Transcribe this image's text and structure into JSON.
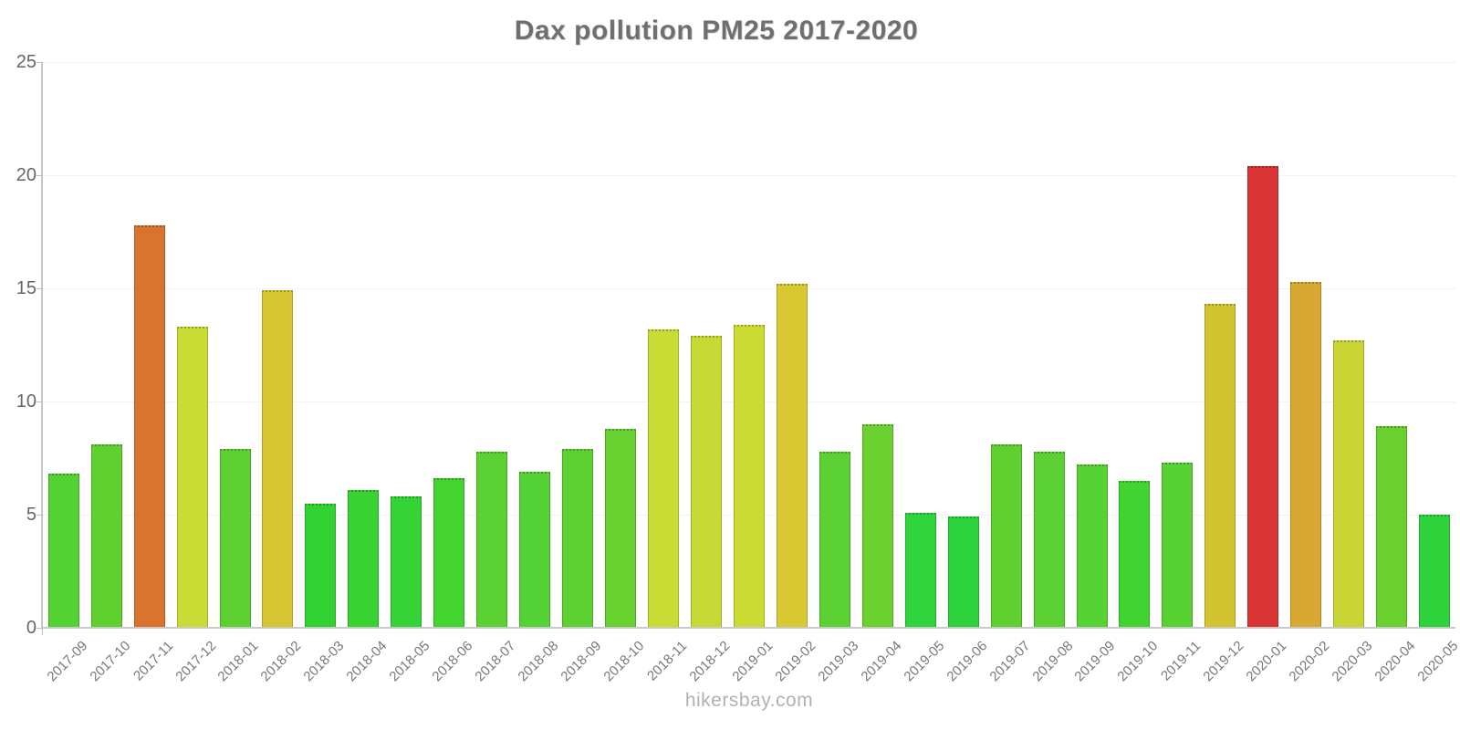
{
  "chart_data": {
    "type": "bar",
    "title": "Dax pollution PM25 2017-2020",
    "xlabel": "",
    "ylabel": "",
    "ylim": [
      0,
      25
    ],
    "yticks": [
      0,
      5,
      10,
      15,
      20,
      25
    ],
    "grid": true,
    "legend": "none",
    "categories": [
      "2017-09",
      "2017-10",
      "2017-11",
      "2017-12",
      "2018-01",
      "2018-02",
      "2018-03",
      "2018-04",
      "2018-05",
      "2018-06",
      "2018-07",
      "2018-08",
      "2018-09",
      "2018-10",
      "2018-11",
      "2018-12",
      "2019-01",
      "2019-02",
      "2019-03",
      "2019-04",
      "2019-05",
      "2019-06",
      "2019-07",
      "2019-08",
      "2019-09",
      "2019-10",
      "2019-11",
      "2019-12",
      "2020-01",
      "2020-02",
      "2020-03",
      "2020-04",
      "2020-05"
    ],
    "values": [
      6.8,
      8.1,
      17.8,
      13.3,
      7.9,
      14.9,
      5.5,
      6.1,
      5.8,
      6.6,
      7.8,
      6.9,
      7.9,
      8.8,
      13.2,
      12.9,
      13.4,
      15.2,
      7.8,
      9.0,
      5.1,
      4.9,
      8.1,
      7.8,
      7.2,
      6.5,
      7.3,
      14.3,
      20.4,
      15.3,
      12.7,
      8.9,
      5.0
    ],
    "colors": [
      "#54D234",
      "#5FD02F",
      "#D9732E",
      "#C9DC35",
      "#5DD132",
      "#D6C633",
      "#33D233",
      "#38D331",
      "#35D335",
      "#43D42F",
      "#5CD133",
      "#55D336",
      "#5DD132",
      "#68D02F",
      "#C9DC35",
      "#C6DA36",
      "#CBDB34",
      "#D8C933",
      "#5CD133",
      "#6AD12E",
      "#2FD33B",
      "#2DD33D",
      "#5FD02F",
      "#5CD133",
      "#57D234",
      "#41D430",
      "#58D233",
      "#D2C42F",
      "#D93434",
      "#D9A832",
      "#C9D435",
      "#6AD02F",
      "#2ED33C"
    ]
  },
  "footer": {
    "text": "hikersbay.com"
  }
}
